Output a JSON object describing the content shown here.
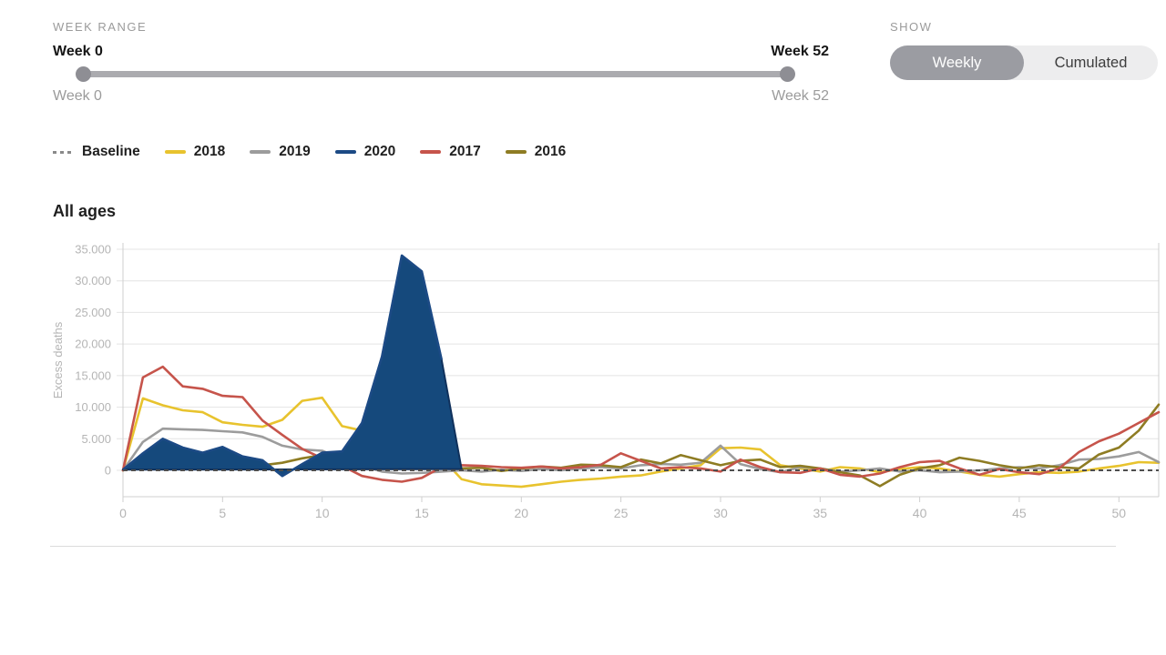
{
  "controls": {
    "week_range": {
      "label": "WEEK RANGE",
      "min_label": "Week 0",
      "max_label": "Week 52",
      "min_sublabel": "Week 0",
      "max_sublabel": "Week 52"
    },
    "show": {
      "label": "SHOW",
      "options": [
        {
          "label": "Weekly",
          "selected": true
        },
        {
          "label": "Cumulated",
          "selected": false
        }
      ]
    }
  },
  "legend": {
    "items": [
      {
        "label": "Baseline",
        "color": "#8a8a8a",
        "dashed": true
      },
      {
        "label": "2018",
        "color": "#e8c32e"
      },
      {
        "label": "2019",
        "color": "#9c9c9c"
      },
      {
        "label": "2020",
        "color": "#1c4a85"
      },
      {
        "label": "2017",
        "color": "#c6544b"
      },
      {
        "label": "2016",
        "color": "#8e7c23"
      }
    ]
  },
  "chart_data": {
    "type": "line",
    "title": "All ages",
    "xlabel": "",
    "ylabel": "Excess deaths",
    "x_range": [
      0,
      52
    ],
    "ylim": [
      -4200,
      36300
    ],
    "grid": true,
    "legend_position": "top",
    "y_ticks": [
      0,
      5000,
      10000,
      15000,
      20000,
      25000,
      30000,
      35000
    ],
    "y_tick_labels": [
      "0",
      "5.000",
      "10.000",
      "15.000",
      "20.000",
      "25.000",
      "30.000",
      "35.000"
    ],
    "x_ticks": [
      0,
      5,
      10,
      15,
      20,
      25,
      30,
      35,
      40,
      45,
      50
    ],
    "baseline": {
      "label": "Baseline",
      "value": 0,
      "color": "#4d4d4d",
      "dashed": true
    },
    "series": [
      {
        "name": "2018",
        "color": "#e8c32e",
        "values": [
          0,
          11400,
          10300,
          9500,
          9200,
          7600,
          7200,
          6900,
          8000,
          11000,
          11500,
          7000,
          6300,
          6500,
          6300,
          5500,
          2000,
          -1400,
          -2200,
          -2400,
          -2600,
          -2200,
          -1800,
          -1500,
          -1300,
          -1000,
          -800,
          -200,
          300,
          800,
          3500,
          3600,
          3300,
          800,
          300,
          -200,
          500,
          300,
          -300,
          200,
          500,
          300,
          -200,
          -700,
          -1000,
          -600,
          -300,
          -400,
          -200,
          300,
          700,
          1300,
          1200
        ]
      },
      {
        "name": "2019",
        "color": "#9c9c9c",
        "values": [
          0,
          4500,
          6600,
          6500,
          6400,
          6200,
          6000,
          5300,
          3900,
          3300,
          3100,
          1800,
          700,
          -200,
          -500,
          -400,
          -200,
          0,
          -200,
          100,
          -100,
          200,
          0,
          300,
          500,
          300,
          800,
          1000,
          900,
          1200,
          3900,
          1000,
          200,
          -300,
          500,
          300,
          -200,
          0,
          300,
          -200,
          0,
          -300,
          -200,
          0,
          300,
          500,
          300,
          800,
          1700,
          1800,
          2200,
          2900,
          1300
        ]
      },
      {
        "name": "2016",
        "color": "#8e7c23",
        "values": [
          0,
          800,
          1400,
          1100,
          1300,
          1200,
          900,
          800,
          1200,
          1900,
          2400,
          2900,
          2400,
          1500,
          1000,
          800,
          500,
          300,
          400,
          -100,
          300,
          600,
          400,
          900,
          800,
          500,
          1700,
          1100,
          2400,
          1600,
          800,
          1500,
          1700,
          500,
          700,
          300,
          -300,
          -800,
          -2500,
          -700,
          300,
          800,
          2000,
          1500,
          800,
          300,
          800,
          500,
          300,
          2500,
          3600,
          6300,
          10400
        ]
      },
      {
        "name": "2017",
        "color": "#c6544b",
        "values": [
          0,
          14700,
          16400,
          13300,
          12900,
          11800,
          11600,
          7900,
          5600,
          3400,
          1900,
          700,
          -900,
          -1500,
          -1800,
          -1200,
          500,
          800,
          700,
          500,
          400,
          600,
          300,
          500,
          900,
          2700,
          1500,
          300,
          500,
          300,
          -200,
          1700,
          500,
          -300,
          -400,
          300,
          -700,
          -1000,
          -500,
          500,
          1300,
          1500,
          300,
          -700,
          200,
          -300,
          -600,
          300,
          2900,
          4600,
          5800,
          7500,
          9200
        ]
      },
      {
        "name": "2020",
        "color": "#1c4a85",
        "fill": true,
        "fill_color": "#15497c",
        "outline_color": "#10315c",
        "line_cutoff_index": 16,
        "values": [
          100,
          2700,
          5000,
          3600,
          2800,
          3700,
          2200,
          1600,
          -900,
          1000,
          2800,
          3000,
          7500,
          18000,
          34000,
          31500,
          17500,
          200
        ]
      }
    ]
  }
}
